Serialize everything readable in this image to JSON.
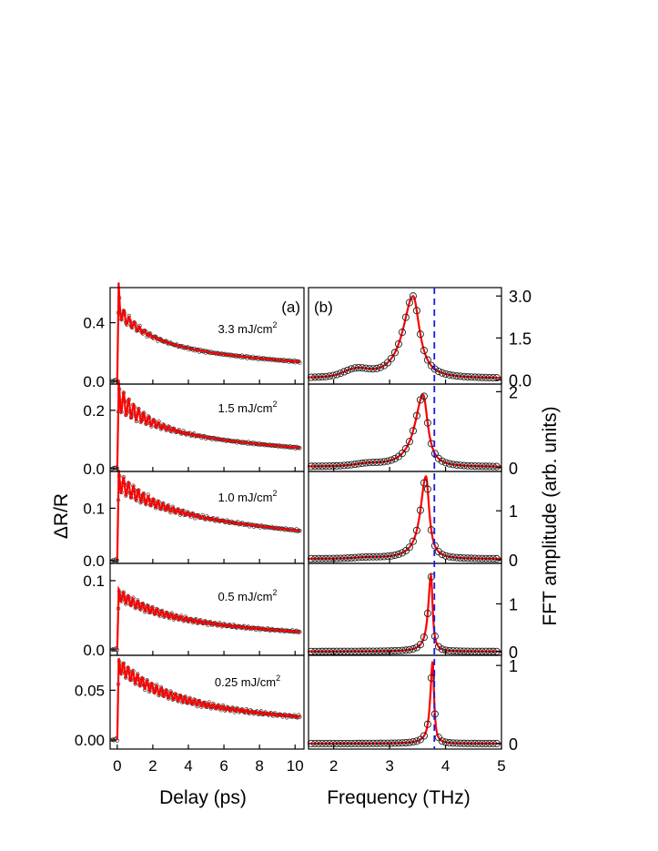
{
  "chart_data": {
    "type": "line",
    "panel_labels": [
      "(a)",
      "(b)"
    ],
    "left": {
      "xlabel": "Delay  (ps)",
      "ylabel": "ΔR/R",
      "xlim": [
        -0.4,
        10.5
      ],
      "xticks": [
        0,
        2,
        4,
        6,
        8,
        10
      ],
      "xtick_labels": [
        "0",
        "2",
        "4",
        "6",
        "8",
        "10"
      ],
      "panels": [
        {
          "fluence": "3.3 mJ/cm",
          "sup": "2",
          "ylim": [
            -0.02,
            0.64
          ],
          "yticks": [
            0.0,
            0.4
          ],
          "ytick_labels": [
            "0.0",
            "0.4"
          ],
          "peak": 0.62,
          "A": 0.22,
          "tau": 1.8,
          "B": 0.26,
          "tau2": 15,
          "osc": 0.055,
          "freq": 3.4,
          "damp": 1.2
        },
        {
          "fluence": "1.5 mJ/cm",
          "sup": "2",
          "ylim": [
            -0.01,
            0.29
          ],
          "yticks": [
            0.0,
            0.2
          ],
          "ytick_labels": [
            "0.0",
            "0.2"
          ],
          "peak": 0.26,
          "A": 0.1,
          "tau": 1.8,
          "B": 0.14,
          "tau2": 15,
          "osc": 0.045,
          "freq": 3.55,
          "damp": 1.6
        },
        {
          "fluence": "1.0 mJ/cm",
          "sup": "2",
          "ylim": [
            -0.005,
            0.17
          ],
          "yticks": [
            0.0,
            0.1
          ],
          "ytick_labels": [
            "0.0",
            "0.1"
          ],
          "peak": 0.155,
          "A": 0.05,
          "tau": 2.2,
          "B": 0.1,
          "tau2": 18,
          "osc": 0.018,
          "freq": 3.6,
          "damp": 2.5
        },
        {
          "fluence": "0.5 mJ/cm",
          "sup": "2",
          "ylim": [
            -0.008,
            0.125
          ],
          "yticks": [
            0.0,
            0.1
          ],
          "ytick_labels": [
            "0.0",
            "0.1"
          ],
          "peak": 0.08,
          "A": 0.035,
          "tau": 2.5,
          "B": 0.045,
          "tau2": 18,
          "osc": 0.008,
          "freq": 3.7,
          "damp": 4.0
        },
        {
          "fluence": "0.25 mJ/cm",
          "sup": "2",
          "ylim": [
            -0.009,
            0.085
          ],
          "yticks": [
            0.0,
            0.05
          ],
          "ytick_labels": [
            "0.00",
            "0.05"
          ],
          "peak": 0.075,
          "A": 0.035,
          "tau": 2.5,
          "B": 0.04,
          "tau2": 18,
          "osc": 0.007,
          "freq": 3.75,
          "damp": 5.0
        }
      ]
    },
    "right": {
      "xlabel": "Frequency  (THz)",
      "ylabel": "FFT amplitude   (arb. units)",
      "xlim": [
        1.55,
        5.0
      ],
      "xticks": [
        2,
        3,
        4,
        5
      ],
      "xtick_labels": [
        "2",
        "3",
        "4",
        "5"
      ],
      "dashed_line_x": 3.8,
      "panels": [
        {
          "ylim": [
            -0.15,
            3.3
          ],
          "yticks": [
            0.0,
            1.5,
            3.0
          ],
          "ytick_labels": [
            "0.0",
            "1.5",
            "3.0"
          ],
          "peak_x": 3.42,
          "peak_y": 2.95,
          "wl": 0.22,
          "wr": 0.14,
          "base": 0.05,
          "bump_x": 2.4,
          "bump_y": 0.25,
          "bump_w": 0.3
        },
        {
          "ylim": [
            -0.1,
            2.2
          ],
          "yticks": [
            0,
            2
          ],
          "ytick_labels": [
            "0",
            "2"
          ],
          "peak_x": 3.6,
          "peak_y": 1.9,
          "wl": 0.18,
          "wr": 0.1,
          "base": 0.02,
          "bump_x": 2.6,
          "bump_y": 0.05,
          "bump_w": 0.3
        },
        {
          "ylim": [
            -0.07,
            1.8
          ],
          "yticks": [
            0,
            1
          ],
          "ytick_labels": [
            "0",
            "1"
          ],
          "peak_x": 3.65,
          "peak_y": 1.68,
          "wl": 0.12,
          "wr": 0.07,
          "base": 0.02,
          "bump_x": 2.6,
          "bump_y": 0.02,
          "bump_w": 0.3
        },
        {
          "ylim": [
            -0.08,
            1.85
          ],
          "yticks": [
            0,
            1
          ],
          "ytick_labels": [
            "0",
            "1"
          ],
          "peak_x": 3.74,
          "peak_y": 1.6,
          "wl": 0.06,
          "wr": 0.035,
          "base": 0.0,
          "bump_x": 2.6,
          "bump_y": 0.0,
          "bump_w": 0.3
        },
        {
          "ylim": [
            -0.07,
            1.13
          ],
          "yticks": [
            0,
            1
          ],
          "ytick_labels": [
            "0",
            "1"
          ],
          "peak_x": 3.77,
          "peak_y": 1.05,
          "wl": 0.05,
          "wr": 0.03,
          "base": 0.0,
          "bump_x": 2.6,
          "bump_y": 0.0,
          "bump_w": 0.3
        }
      ]
    },
    "colors": {
      "fit": "#ff0000",
      "data": "#222222",
      "dashed": "#1a1ae6",
      "axes": "#000000"
    }
  }
}
